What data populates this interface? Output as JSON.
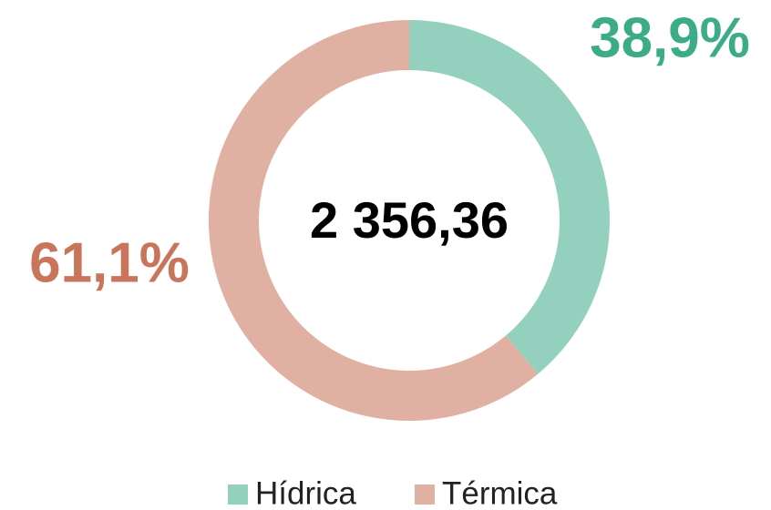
{
  "chart_data": {
    "type": "pie",
    "donut": true,
    "categories": [
      "Hídrica",
      "Térmica"
    ],
    "values": [
      38.9,
      61.1
    ],
    "value_labels": [
      "38,9%",
      "61,1%"
    ],
    "colors": [
      "#93d1be",
      "#e0b1a2"
    ],
    "label_colors": [
      "#3bab88",
      "#c8755b"
    ],
    "center_label": "2 356,36",
    "legend": "bottom"
  }
}
